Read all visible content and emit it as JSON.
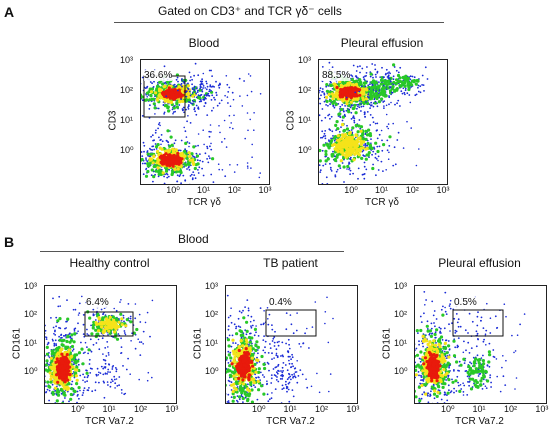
{
  "panel_a": {
    "letter": "A",
    "header": "Gated on CD3⁺ and TCR γδ⁻ cells",
    "plots": [
      {
        "title": "Blood",
        "gate_pct": "36.6%",
        "xlabel": "TCR γδ",
        "ylabel": "CD3"
      },
      {
        "title": "Pleural effusion",
        "gate_pct": "88.5%",
        "xlabel": "TCR γδ",
        "ylabel": "CD3"
      }
    ]
  },
  "panel_b": {
    "letter": "B",
    "header": "Blood",
    "plots": [
      {
        "title": "Healthy control",
        "gate_pct": "6.4%",
        "xlabel": "TCR Va7.2",
        "ylabel": "CD161"
      },
      {
        "title": "TB patient",
        "gate_pct": "0.4%",
        "xlabel": "TCR Va7.2",
        "ylabel": "CD161"
      },
      {
        "title": "Pleural effusion",
        "gate_pct": "0.5%",
        "xlabel": "TCR Va7.2",
        "ylabel": "CD161"
      }
    ]
  },
  "ticks": {
    "x": [
      "10⁰",
      "10¹",
      "10²",
      "10³"
    ],
    "y": [
      "10⁰",
      "10¹",
      "10²",
      "10³"
    ]
  },
  "colors": {
    "density_low": "#1a2bd6",
    "density_mid": "#28c828",
    "density_high": "#f5e31a",
    "density_peak": "#e81a0c"
  }
}
